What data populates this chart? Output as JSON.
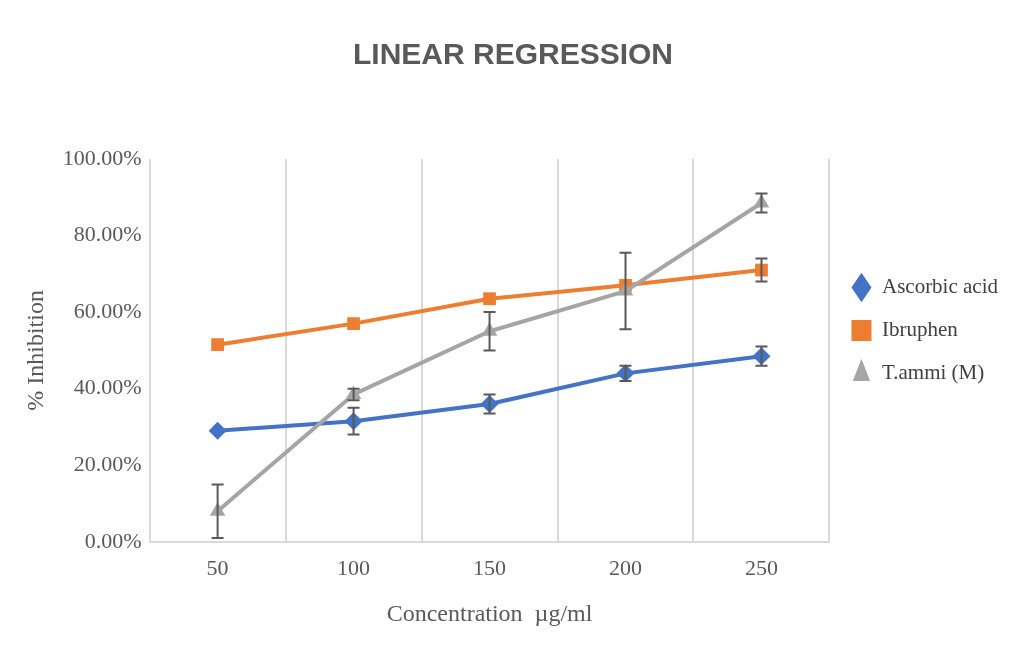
{
  "chart_data": {
    "type": "line",
    "title": "LINEAR REGRESSION",
    "xlabel": "Concentration  µg/ml",
    "ylabel": "% Inhibition",
    "categories": [
      "50",
      "100",
      "150",
      "200",
      "250"
    ],
    "series": [
      {
        "name": "Ascorbic acid",
        "color": "#4472c4",
        "marker": "diamond",
        "values": [
          29,
          31.5,
          36,
          44,
          48.5
        ],
        "errors": [
          null,
          3.5,
          2.5,
          2,
          2.5
        ]
      },
      {
        "name": "Ibruphen",
        "color": "#ed7d31",
        "marker": "square",
        "values": [
          51.5,
          57,
          63.5,
          67,
          71
        ],
        "errors": [
          null,
          null,
          null,
          null,
          3
        ]
      },
      {
        "name": "T.ammi (M)",
        "color": "#a5a5a5",
        "marker": "triangle",
        "values": [
          8,
          38.5,
          55,
          65.5,
          88.5
        ],
        "errors": [
          7,
          1.5,
          5,
          10,
          2.5
        ]
      }
    ],
    "ylim": [
      0,
      100
    ],
    "yticks": [
      {
        "value": 0,
        "label": "0.00%"
      },
      {
        "value": 20,
        "label": "20.00%"
      },
      {
        "value": 40,
        "label": "40.00%"
      },
      {
        "value": 60,
        "label": "60.00%"
      },
      {
        "value": 80,
        "label": "80.00%"
      },
      {
        "value": 100,
        "label": "100.00%"
      }
    ],
    "grid": "x",
    "legend": "right",
    "line_style": "solid"
  }
}
